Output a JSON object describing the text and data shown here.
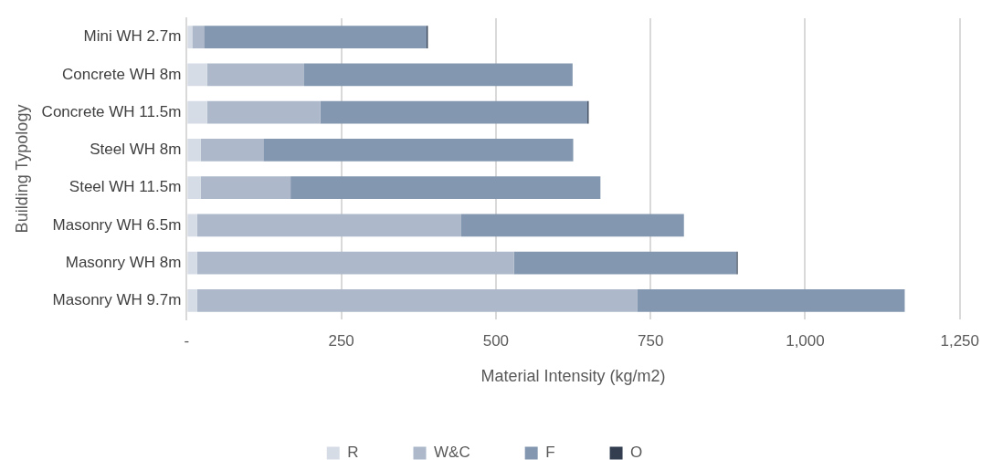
{
  "chart_data": {
    "type": "bar",
    "orientation": "horizontal",
    "stacked": true,
    "xlabel": "Material Intensity (kg/m2)",
    "ylabel": "Building Typology",
    "categories": [
      "Mini WH 2.7m",
      "Concrete WH 8m",
      "Concrete WH 11.5m",
      "Steel WH 8m",
      "Steel WH 11.5m",
      "Masonry WH 6.5m",
      "Masonry WH 8m",
      "Masonry WH 9.7m"
    ],
    "series": [
      {
        "name": "R",
        "color": "#d6dce5",
        "values": [
          9,
          33,
          33,
          23,
          23,
          17,
          17,
          17
        ]
      },
      {
        "name": "W&C",
        "color": "#adb9ca",
        "values": [
          19,
          157,
          183,
          101,
          145,
          427,
          512,
          712
        ]
      },
      {
        "name": "F",
        "color": "#8497b0",
        "values": [
          360,
          434,
          432,
          501,
          501,
          360,
          360,
          432
        ]
      },
      {
        "name": "O",
        "color": "#333f50",
        "values": [
          2,
          0,
          2,
          0,
          0,
          0,
          2,
          0
        ]
      }
    ],
    "xlim": [
      0,
      1250
    ],
    "xticks": [
      {
        "value": 0,
        "label": "-"
      },
      250,
      500,
      750,
      {
        "value": 1000,
        "label": "1,000"
      },
      {
        "value": 1250,
        "label": "1,250"
      }
    ],
    "grid": "x",
    "legend": "bottom"
  }
}
